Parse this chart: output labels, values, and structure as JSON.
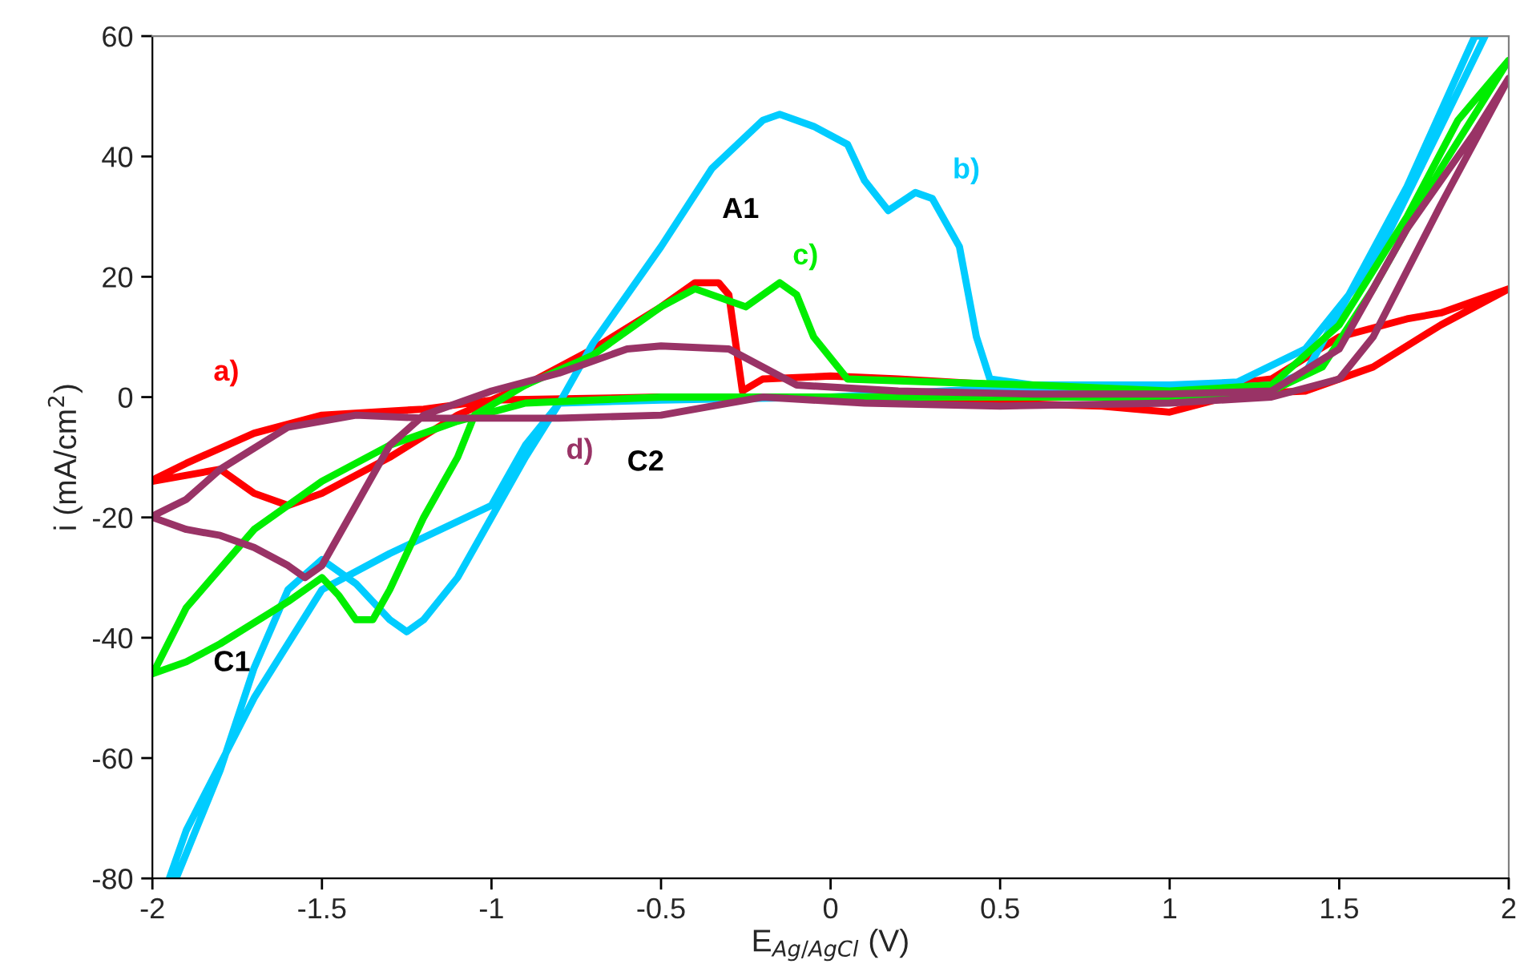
{
  "chart_data": {
    "type": "line",
    "xlabel": "E$_{Ag/AgCl}$ (V)",
    "ylabel": "i (mA/cm$^{2}$)",
    "xlim": [
      -2,
      2
    ],
    "ylim": [
      -80,
      60
    ],
    "xticks": [
      -2,
      -1.5,
      -1,
      -0.5,
      0,
      0.5,
      1,
      1.5,
      2
    ],
    "yticks": [
      -80,
      -60,
      -40,
      -20,
      0,
      20,
      40,
      60
    ],
    "grid": false,
    "legend": false,
    "marker": "none",
    "line_style": "solid",
    "series": [
      {
        "name": "a)",
        "color": "#ff0000",
        "x": [
          -2,
          -1.8,
          -1.7,
          -1.6,
          -1.5,
          -1.3,
          -1.1,
          -0.9,
          -0.7,
          -0.5,
          -0.4,
          -0.33,
          -0.3,
          -0.26,
          -0.2,
          0,
          0.2,
          0.5,
          1.0,
          1.3,
          1.5,
          1.7,
          1.8,
          2,
          1.8,
          1.6,
          1.4,
          1.2,
          1.0,
          0.8,
          0.5,
          0.2,
          -0.5,
          -1.0,
          -1.2,
          -1.5,
          -1.7,
          -1.9,
          -1.99
        ],
        "values": [
          -14,
          -12,
          -16,
          -18,
          -16,
          -10,
          -3,
          2,
          8,
          15,
          19,
          19,
          17,
          1,
          3,
          3.5,
          3,
          2,
          1,
          3,
          10,
          13,
          14,
          18,
          12,
          5,
          1,
          0.5,
          -2.5,
          -1.5,
          -1,
          0,
          0,
          -0.5,
          -2,
          -3,
          -6,
          -11,
          -13.5
        ]
      },
      {
        "name": "b)",
        "color": "#00ccff",
        "x": [
          -1.93,
          -1.8,
          -1.7,
          -1.6,
          -1.5,
          -1.4,
          -1.3,
          -1.25,
          -1.2,
          -1.1,
          -1.0,
          -0.9,
          -0.8,
          -0.7,
          -0.5,
          -0.35,
          -0.2,
          -0.15,
          -0.05,
          0.05,
          0.1,
          0.17,
          0.25,
          0.3,
          0.38,
          0.43,
          0.47,
          0.6,
          1.0,
          1.2,
          1.4,
          1.6,
          1.8,
          1.93,
          1.9,
          1.7,
          1.5,
          1.4,
          1.3,
          1.0,
          0.5,
          0,
          -0.5,
          -0.8,
          -0.9,
          -1.0,
          -1.3,
          -1.5,
          -1.7,
          -1.9,
          -1.95
        ],
        "values": [
          -80,
          -62,
          -45,
          -32,
          -27,
          -31,
          -37,
          -39,
          -37,
          -30,
          -20,
          -10,
          -1,
          9,
          25,
          38,
          46,
          47,
          45,
          42,
          36,
          31,
          34,
          33,
          25,
          10,
          3,
          2,
          2,
          2.5,
          8,
          22,
          45,
          60,
          60,
          35,
          14,
          4,
          2,
          1,
          1.5,
          0,
          -0.5,
          -1,
          -8,
          -18,
          -26,
          -32,
          -50,
          -72,
          -80
        ]
      },
      {
        "name": "c)",
        "color": "#00ee00",
        "x": [
          -2,
          -1.9,
          -1.8,
          -1.6,
          -1.5,
          -1.45,
          -1.4,
          -1.35,
          -1.3,
          -1.2,
          -1.1,
          -1.05,
          -0.9,
          -0.7,
          -0.5,
          -0.4,
          -0.3,
          -0.25,
          -0.15,
          -0.1,
          -0.05,
          0.05,
          0.3,
          0.6,
          1.0,
          1.3,
          1.5,
          1.7,
          1.85,
          2,
          1.8,
          1.6,
          1.45,
          1.3,
          1.0,
          0.5,
          0,
          -0.5,
          -0.9,
          -1.1,
          -1.3,
          -1.5,
          -1.7,
          -1.9,
          -1.99
        ],
        "values": [
          -46,
          -44,
          -41,
          -34,
          -30,
          -33,
          -37,
          -37,
          -32,
          -20,
          -10,
          -3,
          2,
          7,
          15,
          18,
          16,
          15,
          19,
          17,
          10,
          3,
          2.5,
          2,
          1,
          2,
          12,
          30,
          46,
          56,
          38,
          18,
          5,
          1,
          0,
          0,
          0,
          0,
          -1,
          -4,
          -8,
          -14,
          -22,
          -35,
          -45
        ]
      },
      {
        "name": "d)",
        "color": "#993366",
        "x": [
          -2,
          -1.9,
          -1.8,
          -1.7,
          -1.6,
          -1.55,
          -1.5,
          -1.4,
          -1.3,
          -1.2,
          -1.0,
          -0.8,
          -0.6,
          -0.5,
          -0.3,
          -0.2,
          -0.1,
          0.2,
          0.6,
          1.0,
          1.3,
          1.5,
          1.7,
          1.9,
          2,
          1.8,
          1.6,
          1.5,
          1.3,
          1.0,
          0.5,
          0.1,
          -0.2,
          -0.5,
          -0.8,
          -1.2,
          -1.4,
          -1.6,
          -1.8,
          -1.9,
          -1.99
        ],
        "values": [
          -20,
          -22,
          -23,
          -25,
          -28,
          -30,
          -28,
          -18,
          -8,
          -3,
          1,
          4,
          8,
          8.5,
          8,
          5,
          2,
          1,
          0.5,
          0.5,
          1,
          8,
          28,
          44,
          53,
          32,
          10,
          3,
          0,
          -1,
          -1.5,
          -1,
          0,
          -3,
          -3.5,
          -3.5,
          -3,
          -5,
          -12,
          -17,
          -19.5
        ]
      }
    ],
    "annotations": [
      "A1",
      "C2",
      "C1"
    ]
  }
}
